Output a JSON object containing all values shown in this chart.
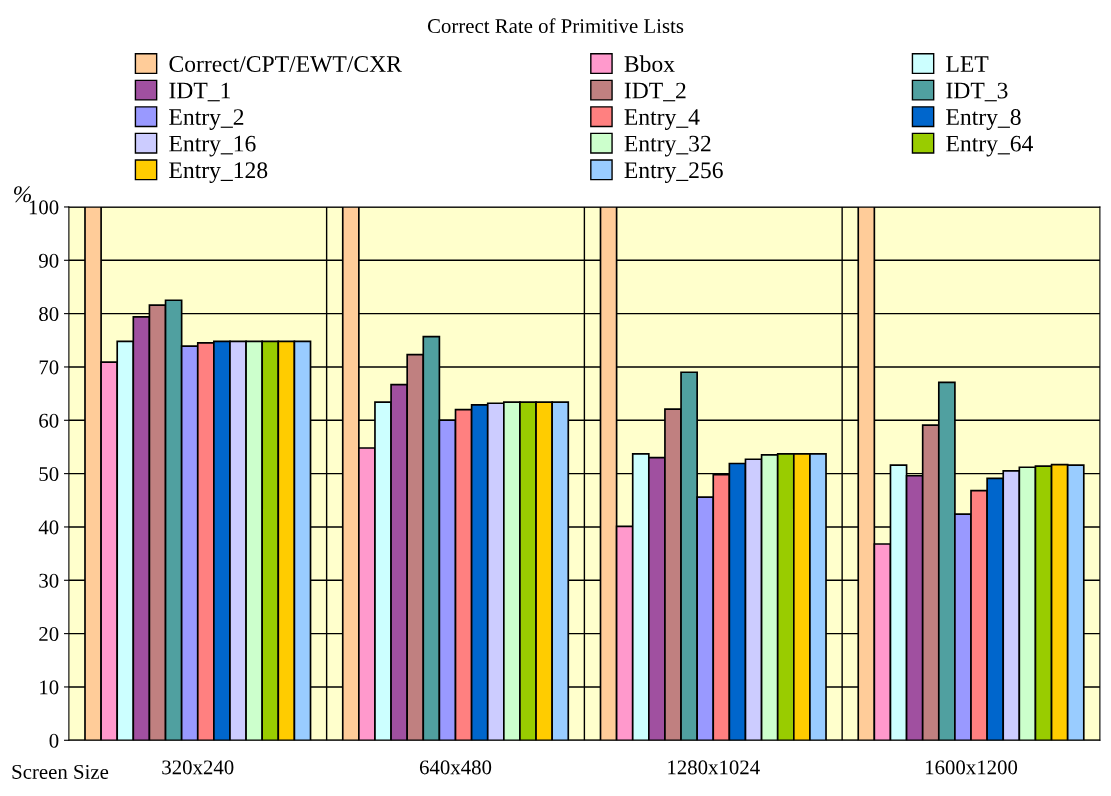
{
  "chart_data": {
    "type": "bar",
    "title": "Correct Rate of Primitive Lists",
    "ylabel": "%",
    "xlabel": "Screen Size",
    "categories": [
      "320x240",
      "640x480",
      "1280x1024",
      "1600x1200"
    ],
    "ylim": [
      0,
      100
    ],
    "yticks": [
      0,
      10,
      20,
      30,
      40,
      50,
      60,
      70,
      80,
      90,
      100
    ],
    "grid": "y",
    "legend": "top",
    "series": [
      {
        "name": "Correct/CPT/EWT/CXR",
        "color": "#ffcc99",
        "values": [
          100,
          100,
          100,
          100
        ]
      },
      {
        "name": "Bbox",
        "color": "#ff99cc",
        "values": [
          70.9,
          54.8,
          40.1,
          36.8
        ]
      },
      {
        "name": "LET",
        "color": "#ccffff",
        "values": [
          74.8,
          63.4,
          53.7,
          51.6
        ]
      },
      {
        "name": "IDT_1",
        "color": "#a050a0",
        "values": [
          79.4,
          66.7,
          53.0,
          49.6
        ]
      },
      {
        "name": "IDT_2",
        "color": "#c08080",
        "values": [
          81.6,
          72.3,
          62.1,
          59.1
        ]
      },
      {
        "name": "IDT_3",
        "color": "#50a0a0",
        "values": [
          82.5,
          75.7,
          69.0,
          67.1
        ]
      },
      {
        "name": "Entry_2",
        "color": "#9999ff",
        "values": [
          73.9,
          60.0,
          45.6,
          42.4
        ]
      },
      {
        "name": "Entry_4",
        "color": "#ff8080",
        "values": [
          74.5,
          62.0,
          49.8,
          46.8
        ]
      },
      {
        "name": "Entry_8",
        "color": "#0066cc",
        "values": [
          74.8,
          62.9,
          51.9,
          49.1
        ]
      },
      {
        "name": "Entry_16",
        "color": "#ccccff",
        "values": [
          74.8,
          63.2,
          52.7,
          50.5
        ]
      },
      {
        "name": "Entry_32",
        "color": "#ccffcc",
        "values": [
          74.8,
          63.4,
          53.5,
          51.2
        ]
      },
      {
        "name": "Entry_64",
        "color": "#99cc00",
        "values": [
          74.8,
          63.4,
          53.7,
          51.4
        ]
      },
      {
        "name": "Entry_128",
        "color": "#ffcc00",
        "values": [
          74.8,
          63.4,
          53.7,
          51.7
        ]
      },
      {
        "name": "Entry_256",
        "color": "#99ccff",
        "values": [
          74.8,
          63.4,
          53.7,
          51.6
        ]
      }
    ]
  }
}
